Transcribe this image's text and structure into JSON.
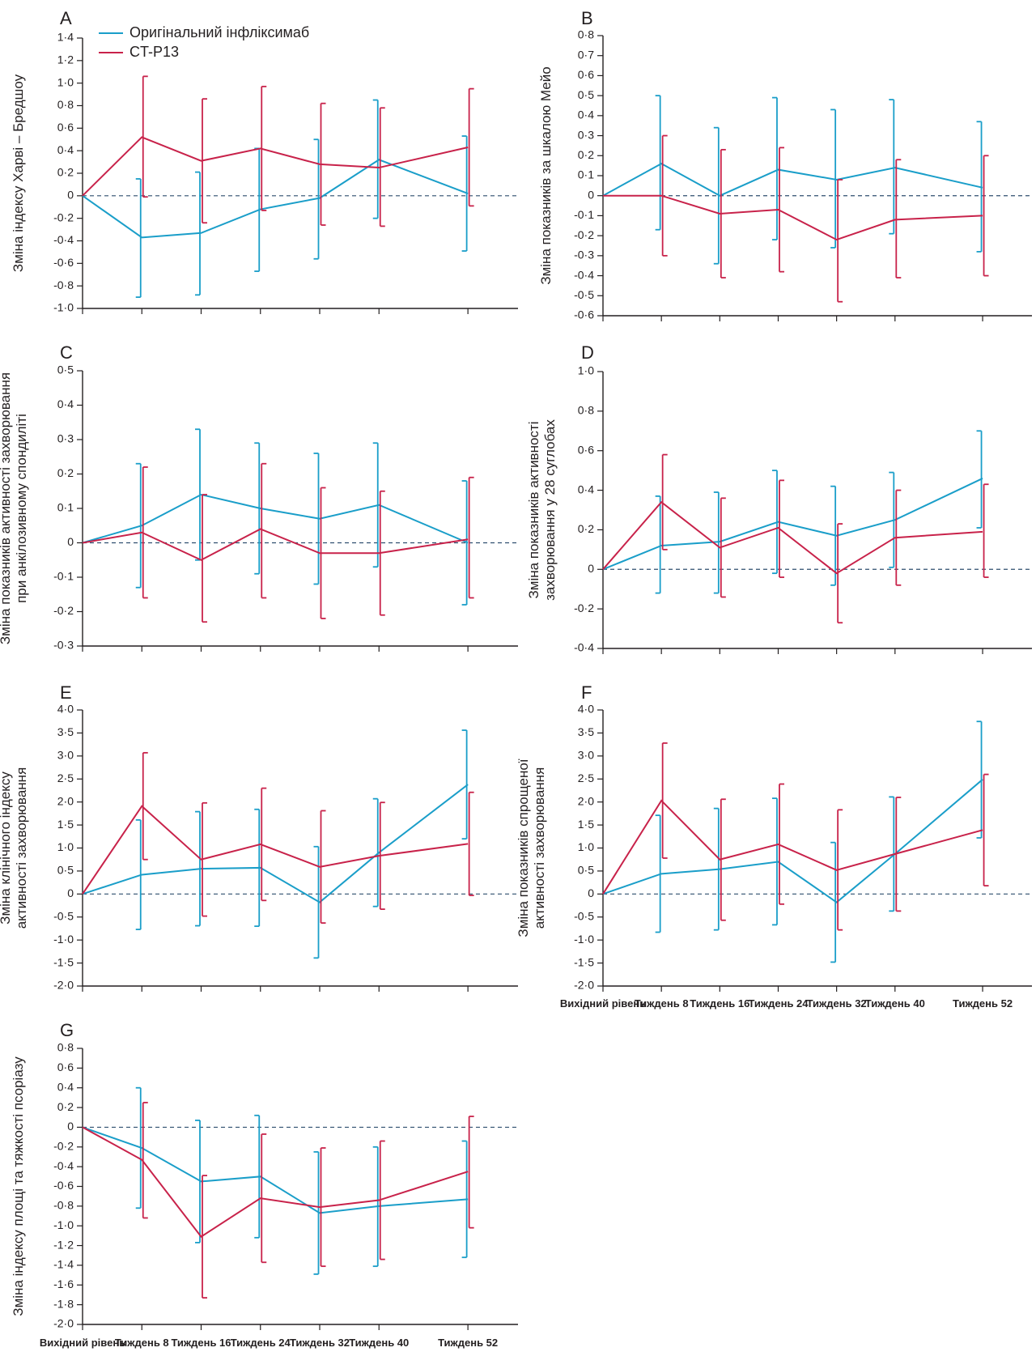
{
  "colors": {
    "original": "#1a9ec9",
    "ctp13": "#c8224a",
    "axis": "#231f20",
    "zero": "#2f4f6f"
  },
  "legend": {
    "original_label": "Оригінальний інфліксимаб",
    "ctp13_label": "CT-P13"
  },
  "x_categories": [
    "Вихідний рівень",
    "Тиждень 8",
    "Тиждень 16",
    "Тиждень 24",
    "Тиждень 32",
    "Тиждень 40",
    "Тиждень 52"
  ],
  "x_weeks": [
    0,
    8,
    16,
    24,
    32,
    40,
    52
  ],
  "chart_data": [
    {
      "type": "line",
      "panel": "A",
      "ylabel": "Зміна індексу Харві – Бредшоу",
      "ylim": [
        -1.0,
        1.4
      ],
      "yticks": [
        -1.0,
        -0.8,
        -0.6,
        -0.4,
        -0.2,
        0,
        0.2,
        0.4,
        0.6,
        0.8,
        1.0,
        1.2,
        1.4
      ],
      "series": [
        {
          "name": "Оригінальний інфліксимаб",
          "values": [
            0,
            -0.37,
            -0.33,
            -0.12,
            -0.02,
            0.32,
            0.02
          ],
          "lower": [
            0,
            -0.9,
            -0.88,
            -0.67,
            -0.56,
            -0.2,
            -0.49
          ],
          "upper": [
            0,
            0.15,
            0.21,
            0.42,
            0.5,
            0.85,
            0.53
          ]
        },
        {
          "name": "CT-P13",
          "values": [
            0,
            0.52,
            0.31,
            0.42,
            0.28,
            0.25,
            0.43
          ],
          "lower": [
            0,
            -0.01,
            -0.24,
            -0.13,
            -0.26,
            -0.27,
            -0.09
          ],
          "upper": [
            0,
            1.06,
            0.86,
            0.97,
            0.82,
            0.78,
            0.95
          ]
        }
      ]
    },
    {
      "type": "line",
      "panel": "B",
      "ylabel": "Зміна показників за шкалою Мейо",
      "ylim": [
        -0.6,
        0.8
      ],
      "yticks": [
        -0.6,
        -0.5,
        -0.4,
        -0.3,
        -0.2,
        -0.1,
        0,
        0.1,
        0.2,
        0.3,
        0.4,
        0.5,
        0.6,
        0.7,
        0.8
      ],
      "series": [
        {
          "name": "Оригінальний інфліксимаб",
          "values": [
            0,
            0.16,
            0.0,
            0.13,
            0.08,
            0.14,
            0.04
          ],
          "lower": [
            0,
            -0.17,
            -0.34,
            -0.22,
            -0.26,
            -0.19,
            -0.28
          ],
          "upper": [
            0,
            0.5,
            0.34,
            0.49,
            0.43,
            0.48,
            0.37
          ]
        },
        {
          "name": "CT-P13",
          "values": [
            0,
            0.0,
            -0.09,
            -0.07,
            -0.22,
            -0.12,
            -0.1
          ],
          "lower": [
            0,
            -0.3,
            -0.41,
            -0.38,
            -0.53,
            -0.41,
            -0.4
          ],
          "upper": [
            0,
            0.3,
            0.23,
            0.24,
            0.08,
            0.18,
            0.2
          ]
        }
      ]
    },
    {
      "type": "line",
      "panel": "C",
      "ylabel": [
        "Зміна показників активності захворювання",
        "при анкілозивному спондиліті"
      ],
      "ylim": [
        -0.3,
        0.5
      ],
      "yticks": [
        -0.3,
        -0.2,
        -0.1,
        0,
        0.1,
        0.2,
        0.3,
        0.4,
        0.5
      ],
      "series": [
        {
          "name": "Оригінальний інфліксимаб",
          "values": [
            0,
            0.05,
            0.14,
            0.1,
            0.07,
            0.11,
            0.0
          ],
          "lower": [
            0,
            -0.13,
            -0.05,
            -0.09,
            -0.12,
            -0.07,
            -0.18
          ],
          "upper": [
            0,
            0.23,
            0.33,
            0.29,
            0.26,
            0.29,
            0.18
          ]
        },
        {
          "name": "CT-P13",
          "values": [
            0,
            0.03,
            -0.05,
            0.04,
            -0.03,
            -0.03,
            0.01
          ],
          "lower": [
            0,
            -0.16,
            -0.23,
            -0.16,
            -0.22,
            -0.21,
            -0.16
          ],
          "upper": [
            0,
            0.22,
            0.14,
            0.23,
            0.16,
            0.15,
            0.19
          ]
        }
      ]
    },
    {
      "type": "line",
      "panel": "D",
      "ylabel": [
        "Зміна показників активності",
        "захворювання у 28 суглобах"
      ],
      "ylim": [
        -0.4,
        1.0
      ],
      "yticks": [
        -0.4,
        -0.2,
        0,
        0.2,
        0.4,
        0.6,
        0.8,
        1.0
      ],
      "series": [
        {
          "name": "Оригінальний інфліксимаб",
          "values": [
            0,
            0.12,
            0.14,
            0.24,
            0.17,
            0.25,
            0.46
          ],
          "lower": [
            0,
            -0.12,
            -0.12,
            -0.02,
            -0.08,
            0.01,
            0.21
          ],
          "upper": [
            0,
            0.37,
            0.39,
            0.5,
            0.42,
            0.49,
            0.7
          ]
        },
        {
          "name": "CT-P13",
          "values": [
            0,
            0.34,
            0.11,
            0.21,
            -0.02,
            0.16,
            0.19
          ],
          "lower": [
            0,
            0.1,
            -0.14,
            -0.04,
            -0.27,
            -0.08,
            -0.04
          ],
          "upper": [
            0,
            0.58,
            0.36,
            0.45,
            0.23,
            0.4,
            0.43
          ]
        }
      ]
    },
    {
      "type": "line",
      "panel": "E",
      "ylabel": [
        "Зміна клінічного індексу",
        "активності захворювання"
      ],
      "ylim": [
        -2.0,
        4.0
      ],
      "yticks": [
        -2.0,
        -1.5,
        -1.0,
        -0.5,
        0,
        0.5,
        1.0,
        1.5,
        2.0,
        2.5,
        3.0,
        3.5,
        4.0
      ],
      "series": [
        {
          "name": "Оригінальний інфліксимаб",
          "values": [
            0,
            0.42,
            0.55,
            0.57,
            -0.18,
            0.9,
            2.38
          ],
          "lower": [
            0,
            -0.77,
            -0.69,
            -0.7,
            -1.39,
            -0.27,
            1.2
          ],
          "upper": [
            0,
            1.61,
            1.79,
            1.84,
            1.03,
            2.07,
            3.56
          ]
        },
        {
          "name": "CT-P13",
          "values": [
            0,
            1.91,
            0.75,
            1.08,
            0.59,
            0.83,
            1.09
          ],
          "lower": [
            0,
            0.75,
            -0.48,
            -0.14,
            -0.63,
            -0.33,
            -0.03
          ],
          "upper": [
            0,
            3.07,
            1.98,
            2.3,
            1.81,
            1.99,
            2.21
          ]
        }
      ]
    },
    {
      "type": "line",
      "panel": "F",
      "ylabel": [
        "Зміна показників спрощеної",
        "активності захворювання"
      ],
      "ylim": [
        -2.0,
        4.0
      ],
      "yticks": [
        -2.0,
        -1.5,
        -1.0,
        -0.5,
        0,
        0.5,
        1.0,
        1.5,
        2.0,
        2.5,
        3.0,
        3.5,
        4.0
      ],
      "series": [
        {
          "name": "Оригінальний інфліксимаб",
          "values": [
            0,
            0.44,
            0.54,
            0.7,
            -0.18,
            0.87,
            2.49
          ],
          "lower": [
            0,
            -0.83,
            -0.78,
            -0.67,
            -1.48,
            -0.37,
            1.22
          ],
          "upper": [
            0,
            1.71,
            1.86,
            2.08,
            1.12,
            2.11,
            3.75
          ]
        },
        {
          "name": "CT-P13",
          "values": [
            0,
            2.03,
            0.75,
            1.08,
            0.52,
            0.87,
            1.39
          ],
          "lower": [
            0,
            0.78,
            -0.57,
            -0.22,
            -0.78,
            -0.37,
            0.18
          ],
          "upper": [
            0,
            3.28,
            2.06,
            2.39,
            1.83,
            2.1,
            2.6
          ]
        }
      ]
    },
    {
      "type": "line",
      "panel": "G",
      "ylabel": "Зміна індексу площі та тяжкості псоріазу",
      "ylim": [
        -2.0,
        0.8
      ],
      "yticks": [
        -2.0,
        -1.8,
        -1.6,
        -1.4,
        -1.2,
        -1.0,
        -0.8,
        -0.6,
        -0.4,
        -0.2,
        0,
        0.2,
        0.4,
        0.6,
        0.8
      ],
      "series": [
        {
          "name": "Оригінальний інфліксимаб",
          "values": [
            0,
            -0.21,
            -0.55,
            -0.5,
            -0.87,
            -0.8,
            -0.73
          ],
          "lower": [
            0,
            -0.82,
            -1.17,
            -1.12,
            -1.49,
            -1.41,
            -1.32
          ],
          "upper": [
            0,
            0.4,
            0.07,
            0.12,
            -0.25,
            -0.2,
            -0.14
          ]
        },
        {
          "name": "CT-P13",
          "values": [
            0,
            -0.33,
            -1.11,
            -0.72,
            -0.81,
            -0.74,
            -0.45
          ],
          "lower": [
            0,
            -0.92,
            -1.73,
            -1.37,
            -1.41,
            -1.34,
            -1.02
          ],
          "upper": [
            0,
            0.25,
            -0.49,
            -0.07,
            -0.21,
            -0.14,
            0.11
          ]
        }
      ]
    }
  ]
}
